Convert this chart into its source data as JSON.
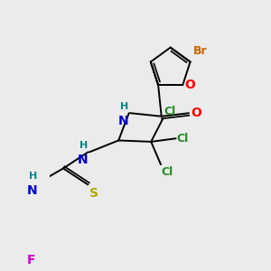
{
  "background_color": "#ebebeb",
  "figsize": [
    3.0,
    3.0
  ],
  "dpi": 100,
  "lw": 1.4,
  "colors": {
    "black": "#000000",
    "Br": "#cc6600",
    "O": "#ff0000",
    "N": "#0000cc",
    "H": "#008888",
    "Cl": "#228B22",
    "S": "#aaaa00",
    "F": "#cc00cc"
  }
}
